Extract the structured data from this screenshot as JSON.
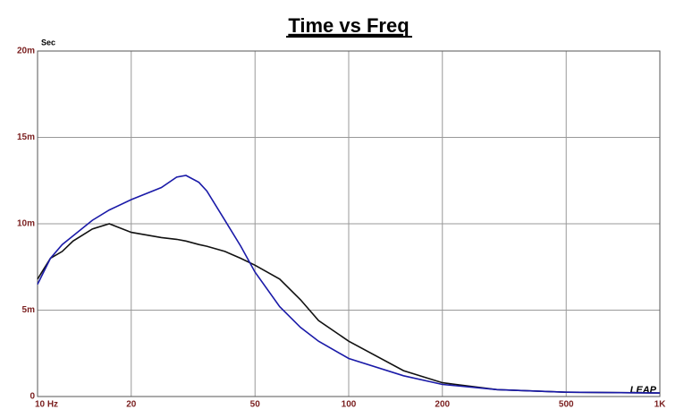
{
  "chart_data": {
    "type": "line",
    "title": "Time vs Freq",
    "y_unit_label": "Sec",
    "logo": "LEAP",
    "x": [
      10,
      11,
      12,
      13,
      15,
      17,
      20,
      25,
      28,
      30,
      33,
      35,
      40,
      45,
      50,
      60,
      70,
      80,
      100,
      150,
      200,
      300,
      500,
      1000
    ],
    "series": [
      {
        "name": "Black",
        "color": "#111111",
        "values": [
          6.8,
          8.0,
          8.4,
          9.0,
          9.7,
          10.0,
          9.5,
          9.2,
          9.1,
          9.0,
          8.8,
          8.7,
          8.4,
          8.0,
          7.6,
          6.8,
          5.6,
          4.4,
          3.2,
          1.5,
          0.8,
          0.4,
          0.25,
          0.2
        ]
      },
      {
        "name": "Blue",
        "color": "#1a1aa8",
        "values": [
          6.5,
          8.0,
          8.8,
          9.3,
          10.2,
          10.8,
          11.4,
          12.1,
          12.7,
          12.8,
          12.4,
          11.9,
          10.2,
          8.7,
          7.2,
          5.2,
          4.0,
          3.2,
          2.2,
          1.2,
          0.7,
          0.4,
          0.25,
          0.2
        ]
      }
    ],
    "xscale": "log",
    "xlim": [
      10,
      1000
    ],
    "xticks": [
      {
        "value": 10,
        "label": "10  Hz"
      },
      20,
      50,
      100,
      200,
      500,
      {
        "value": 1000,
        "label": "1K"
      }
    ],
    "ylim": [
      0,
      20
    ],
    "yticks": [
      {
        "value": 0,
        "label": "0"
      },
      {
        "value": 5,
        "label": "5m"
      },
      {
        "value": 10,
        "label": "10m"
      },
      {
        "value": 15,
        "label": "15m"
      },
      {
        "value": 20,
        "label": "20m"
      }
    ],
    "grid": true
  }
}
